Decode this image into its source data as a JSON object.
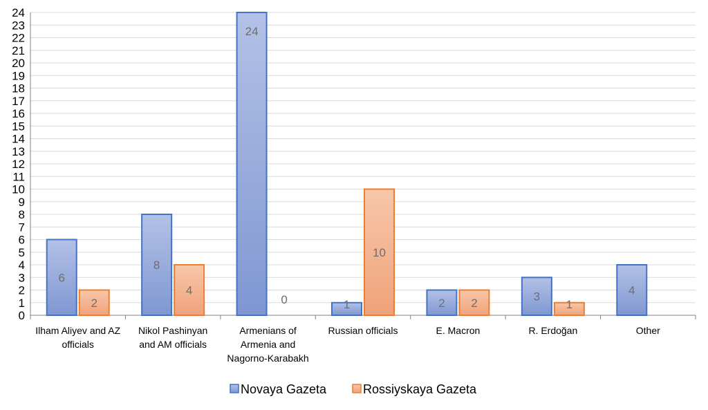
{
  "chart_data": {
    "type": "bar",
    "categories": [
      [
        "Ilham Aliyev and AZ",
        "officials"
      ],
      [
        "Nikol Pashinyan",
        "and AM officials"
      ],
      [
        "Armenians of",
        "Armenia and",
        "Nagorno-Karabakh"
      ],
      [
        "Russian officials"
      ],
      [
        "E. Macron"
      ],
      [
        "R. Erdoğan"
      ],
      [
        "Other"
      ]
    ],
    "series": [
      {
        "name": "Novaya Gazeta",
        "values": [
          6,
          8,
          24,
          1,
          2,
          3,
          4
        ],
        "labels": [
          "6",
          "8",
          "24",
          "1",
          "2",
          "3",
          "4"
        ]
      },
      {
        "name": "Rossiyskaya Gazeta",
        "values": [
          2,
          4,
          0,
          10,
          2,
          1,
          0
        ],
        "labels": [
          "2",
          "4",
          "0",
          "10",
          "2",
          "1",
          ""
        ]
      }
    ],
    "ylim": [
      0,
      24
    ],
    "yticks": [
      "0",
      "1",
      "2",
      "3",
      "4",
      "5",
      "6",
      "7",
      "8",
      "9",
      "10",
      "11",
      "12",
      "13",
      "14",
      "15",
      "16",
      "17",
      "18",
      "19",
      "20",
      "21",
      "22",
      "23",
      "24"
    ],
    "grid": true,
    "legend_position": "bottom"
  },
  "colors": {
    "series_fill": [
      "#9aaedd",
      "#f4b38f"
    ],
    "series_stroke": [
      "#4472c4",
      "#ed7d31"
    ],
    "grid": "#d9d9d9"
  }
}
